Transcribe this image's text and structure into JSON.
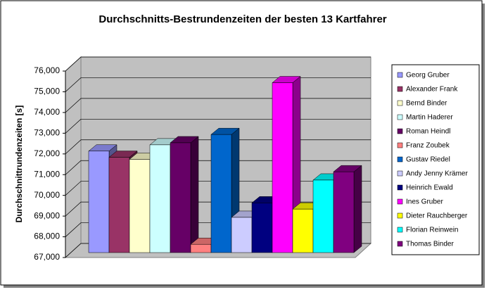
{
  "chart_data": {
    "type": "bar3d",
    "title": "Durchschnitts-Bestrundenzeiten der besten 13 Kartfahrer",
    "y_label": "Durchschnittrundenzeiten [s]",
    "categories": [
      "Georg Gruber",
      "Alexander Frank",
      "Bernd Binder",
      "Martin Haderer",
      "Roman Heindl",
      "Franz Zoubek",
      "Gustav Riedel",
      "Andy Jenny Krämer",
      "Heinrich Ewald",
      "Ines Gruber",
      "Dieter Rauchberger",
      "Florian Reinwein",
      "Thomas Binder"
    ],
    "values": [
      71900,
      71600,
      71500,
      72200,
      72300,
      67400,
      72700,
      68700,
      69400,
      75200,
      69100,
      70500,
      70900
    ],
    "colors": [
      "#9999ff",
      "#993366",
      "#ffffcc",
      "#ccffff",
      "#660066",
      "#ff8080",
      "#0066cc",
      "#ccccff",
      "#000080",
      "#ff00ff",
      "#ffff00",
      "#00ffff",
      "#800080"
    ],
    "ylim": [
      67000,
      76000
    ],
    "yticks": [
      {
        "value": 67000,
        "label": "67,000"
      },
      {
        "value": 68000,
        "label": "68,000"
      },
      {
        "value": 69000,
        "label": "69,000"
      },
      {
        "value": 70000,
        "label": "70,000"
      },
      {
        "value": 71000,
        "label": "71,000"
      },
      {
        "value": 72000,
        "label": "72,000"
      },
      {
        "value": 73000,
        "label": "73,000"
      },
      {
        "value": 74000,
        "label": "74,000"
      },
      {
        "value": 75000,
        "label": "75,000"
      },
      {
        "value": 76000,
        "label": "76,000"
      }
    ],
    "grid": true,
    "legend": "right"
  }
}
